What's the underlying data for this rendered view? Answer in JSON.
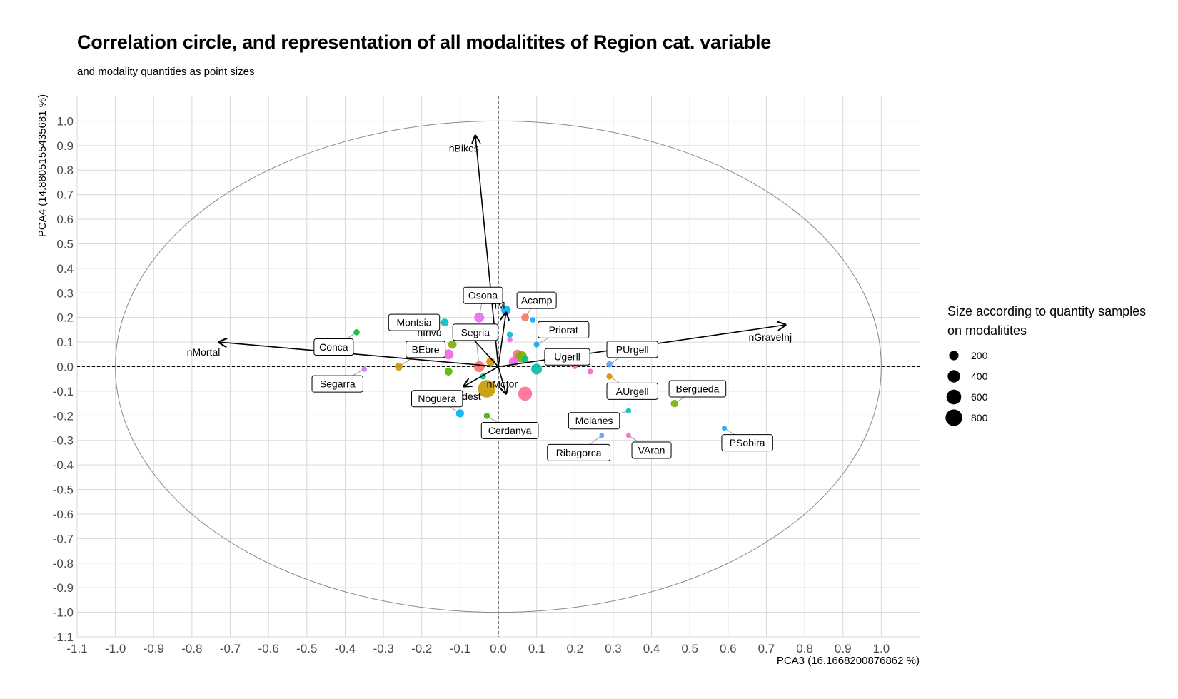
{
  "chart_data": {
    "type": "scatter",
    "title": "Correlation circle, and representation of all modalitites of Region cat. variable",
    "subtitle": "and modality quantities as point sizes",
    "xlabel": "PCA3 (16.1668200876862 %)",
    "ylabel": "PCA4 (14.8805155435681 %)",
    "xlim": [
      -1.1,
      1.1
    ],
    "ylim": [
      -1.1,
      1.1
    ],
    "x_ticks": [
      "-1.1",
      "-1.0",
      "-0.9",
      "-0.8",
      "-0.7",
      "-0.6",
      "-0.5",
      "-0.4",
      "-0.3",
      "-0.2",
      "-0.1",
      "0.0",
      "0.1",
      "0.2",
      "0.3",
      "0.4",
      "0.5",
      "0.6",
      "0.7",
      "0.8",
      "0.9",
      "1.0"
    ],
    "y_ticks": [
      "-1.1",
      "-1.0",
      "-0.9",
      "-0.8",
      "-0.7",
      "-0.6",
      "-0.5",
      "-0.4",
      "-0.3",
      "-0.2",
      "-0.1",
      "0.0",
      "0.1",
      "0.2",
      "0.3",
      "0.4",
      "0.5",
      "0.6",
      "0.7",
      "0.8",
      "0.9",
      "1.0"
    ],
    "grid": true,
    "circle_radius": 1.0,
    "arrows": [
      {
        "name": "nMortal",
        "x": -0.73,
        "y": 0.1
      },
      {
        "name": "nGraveInj",
        "x": 0.75,
        "y": 0.17
      },
      {
        "name": "nBikes",
        "x": -0.06,
        "y": 0.94
      },
      {
        "name": "nMotor",
        "x": 0.02,
        "y": -0.11
      },
      {
        "name": "nInvo",
        "x": -0.1,
        "y": 0.17
      },
      {
        "name": "nM",
        "x": 0.02,
        "y": 0.22
      },
      {
        "name": "dest",
        "x": -0.09,
        "y": -0.08
      }
    ],
    "arrow_labels": [
      {
        "text": "nMortal",
        "x": -0.77,
        "y": 0.06
      },
      {
        "text": "nGraveInj",
        "x": 0.71,
        "y": 0.12
      },
      {
        "text": "nBikes",
        "x": -0.09,
        "y": 0.89
      },
      {
        "text": "nMotor",
        "x": 0.01,
        "y": -0.07
      },
      {
        "text": "nInvo",
        "x": -0.18,
        "y": 0.14
      },
      {
        "text": "nM",
        "x": 0.0,
        "y": 0.25
      },
      {
        "text": "dest",
        "x": -0.07,
        "y": -0.12
      }
    ],
    "points": [
      {
        "x": -0.37,
        "y": 0.14,
        "size": 60,
        "color": "#00BA38"
      },
      {
        "x": -0.35,
        "y": -0.01,
        "size": 40,
        "color": "#C77CFF"
      },
      {
        "x": -0.26,
        "y": 0.0,
        "size": 120,
        "color": "#C49A00"
      },
      {
        "x": -0.14,
        "y": 0.18,
        "size": 120,
        "color": "#00BFC4"
      },
      {
        "x": -0.12,
        "y": 0.09,
        "size": 150,
        "color": "#7CAE00"
      },
      {
        "x": -0.13,
        "y": 0.05,
        "size": 240,
        "color": "#F564E3"
      },
      {
        "x": -0.13,
        "y": -0.02,
        "size": 120,
        "color": "#53B400"
      },
      {
        "x": -0.05,
        "y": 0.2,
        "size": 230,
        "color": "#E76BF3"
      },
      {
        "x": -0.05,
        "y": 0.0,
        "size": 280,
        "color": "#F8766D"
      },
      {
        "x": -0.02,
        "y": 0.02,
        "size": 160,
        "color": "#D89000"
      },
      {
        "x": -0.04,
        "y": -0.04,
        "size": 60,
        "color": "#00C08B"
      },
      {
        "x": -0.03,
        "y": -0.09,
        "size": 900,
        "color": "#C49A00"
      },
      {
        "x": -0.1,
        "y": -0.19,
        "size": 130,
        "color": "#00B0F6"
      },
      {
        "x": -0.03,
        "y": -0.2,
        "size": 60,
        "color": "#39B600"
      },
      {
        "x": 0.02,
        "y": 0.23,
        "size": 200,
        "color": "#00B0F6"
      },
      {
        "x": 0.03,
        "y": 0.13,
        "size": 60,
        "color": "#00BFC4"
      },
      {
        "x": 0.03,
        "y": 0.11,
        "size": 40,
        "color": "#E76BF3"
      },
      {
        "x": 0.05,
        "y": 0.05,
        "size": 200,
        "color": "#FF6C91"
      },
      {
        "x": 0.06,
        "y": 0.04,
        "size": 320,
        "color": "#7CAE00"
      },
      {
        "x": 0.04,
        "y": 0.02,
        "size": 210,
        "color": "#F564E3"
      },
      {
        "x": 0.07,
        "y": 0.2,
        "size": 120,
        "color": "#F8766D"
      },
      {
        "x": 0.09,
        "y": 0.19,
        "size": 40,
        "color": "#00A9FF"
      },
      {
        "x": 0.1,
        "y": 0.09,
        "size": 50,
        "color": "#00B0F6"
      },
      {
        "x": 0.1,
        "y": -0.01,
        "size": 280,
        "color": "#00BFA4"
      },
      {
        "x": 0.07,
        "y": -0.11,
        "size": 520,
        "color": "#FF6C91"
      },
      {
        "x": 0.07,
        "y": 0.03,
        "size": 80,
        "color": "#00C08B"
      },
      {
        "x": 0.2,
        "y": 0.0,
        "size": 30,
        "color": "#FF62BC"
      },
      {
        "x": 0.24,
        "y": -0.02,
        "size": 50,
        "color": "#FF62BC"
      },
      {
        "x": 0.29,
        "y": 0.01,
        "size": 60,
        "color": "#619CFF"
      },
      {
        "x": 0.29,
        "y": -0.04,
        "size": 60,
        "color": "#D89000"
      },
      {
        "x": 0.34,
        "y": -0.18,
        "size": 40,
        "color": "#00BFC4"
      },
      {
        "x": 0.46,
        "y": -0.15,
        "size": 110,
        "color": "#7CAE00"
      },
      {
        "x": 0.27,
        "y": -0.28,
        "size": 30,
        "color": "#619CFF"
      },
      {
        "x": 0.34,
        "y": -0.28,
        "size": 30,
        "color": "#FF62BC"
      },
      {
        "x": 0.59,
        "y": -0.25,
        "size": 30,
        "color": "#00A9FF"
      }
    ],
    "region_labels": [
      {
        "text": "Osona",
        "lx": -0.04,
        "ly": 0.29,
        "px": -0.05,
        "py": 0.2
      },
      {
        "text": "Acamp",
        "lx": 0.1,
        "ly": 0.27,
        "px": 0.07,
        "py": 0.2
      },
      {
        "text": "Montsia",
        "lx": -0.22,
        "ly": 0.18,
        "px": -0.14,
        "py": 0.18
      },
      {
        "text": "Priorat",
        "lx": 0.17,
        "ly": 0.15,
        "px": 0.1,
        "py": 0.09
      },
      {
        "text": "Segria",
        "lx": -0.06,
        "ly": 0.14,
        "px": -0.05,
        "py": 0.0
      },
      {
        "text": "Conca",
        "lx": -0.43,
        "ly": 0.08,
        "px": -0.37,
        "py": 0.14
      },
      {
        "text": "BEbre",
        "lx": -0.19,
        "ly": 0.07,
        "px": -0.26,
        "py": 0.0
      },
      {
        "text": "PUrgell",
        "lx": 0.35,
        "ly": 0.07,
        "px": 0.29,
        "py": 0.01
      },
      {
        "text": "Ugerll",
        "lx": 0.18,
        "ly": 0.04,
        "px": 0.2,
        "py": 0.0
      },
      {
        "text": "Segarra",
        "lx": -0.42,
        "ly": -0.07,
        "px": -0.35,
        "py": -0.01
      },
      {
        "text": "Bergueda",
        "lx": 0.52,
        "ly": -0.09,
        "px": 0.46,
        "py": -0.15
      },
      {
        "text": "AUrgell",
        "lx": 0.35,
        "ly": -0.1,
        "px": 0.29,
        "py": -0.04
      },
      {
        "text": "Noguera",
        "lx": -0.16,
        "ly": -0.13,
        "px": -0.1,
        "py": -0.19
      },
      {
        "text": "Moianes",
        "lx": 0.25,
        "ly": -0.22,
        "px": 0.34,
        "py": -0.18
      },
      {
        "text": "Cerdanya",
        "lx": 0.03,
        "ly": -0.26,
        "px": -0.03,
        "py": -0.2
      },
      {
        "text": "PSobira",
        "lx": 0.65,
        "ly": -0.31,
        "px": 0.59,
        "py": -0.25
      },
      {
        "text": "Ribagorca",
        "lx": 0.21,
        "ly": -0.35,
        "px": 0.27,
        "py": -0.28
      },
      {
        "text": "VAran",
        "lx": 0.4,
        "ly": -0.34,
        "px": 0.34,
        "py": -0.28
      }
    ],
    "legend": {
      "title_line1": "Size according to quantity samples",
      "title_line2": "on modalitites",
      "position": "right",
      "entries": [
        {
          "label": "200",
          "value": 200
        },
        {
          "label": "400",
          "value": 400
        },
        {
          "label": "600",
          "value": 600
        },
        {
          "label": "800",
          "value": 800
        }
      ]
    }
  }
}
